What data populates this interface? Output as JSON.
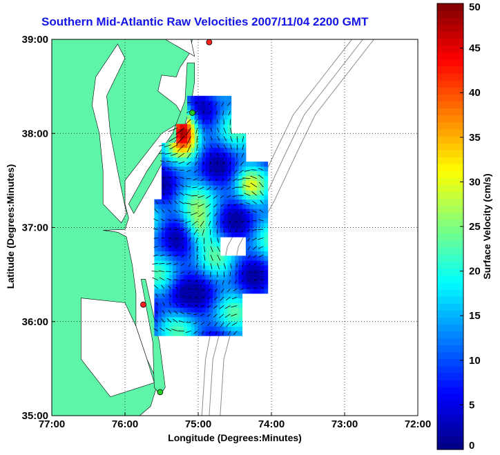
{
  "chart_data": {
    "type": "heatmap",
    "title": "Southern Mid-Atlantic Raw Velocities 2007/11/04 2200 GMT",
    "xlabel": "Longitude (Degrees:Minutes)",
    "ylabel": "Latitude (Degrees:Minutes)",
    "xlim": [
      -77,
      -72
    ],
    "ylim": [
      35,
      39
    ],
    "x_ticks": [
      "77:00",
      "76:00",
      "75:00",
      "74:00",
      "73:00",
      "72:00"
    ],
    "y_ticks": [
      "35:00",
      "36:00",
      "37:00",
      "38:00",
      "39:00"
    ],
    "grid": true,
    "colorbar": {
      "label": "Surface Velocity (cm/s)",
      "range": [
        0,
        50
      ],
      "ticks": [
        "0",
        "5",
        "10",
        "15",
        "20",
        "25",
        "30",
        "35",
        "40",
        "45",
        "50"
      ],
      "colormap": "jet"
    },
    "stations": [
      {
        "lon": -74.85,
        "lat": 38.97,
        "color": "#ff2020"
      },
      {
        "lon": -75.08,
        "lat": 38.22,
        "color": "#22cc22"
      },
      {
        "lon": -75.75,
        "lat": 36.18,
        "color": "#ff2020"
      },
      {
        "lon": -75.52,
        "lat": 35.25,
        "color": "#22cc22"
      }
    ]
  }
}
